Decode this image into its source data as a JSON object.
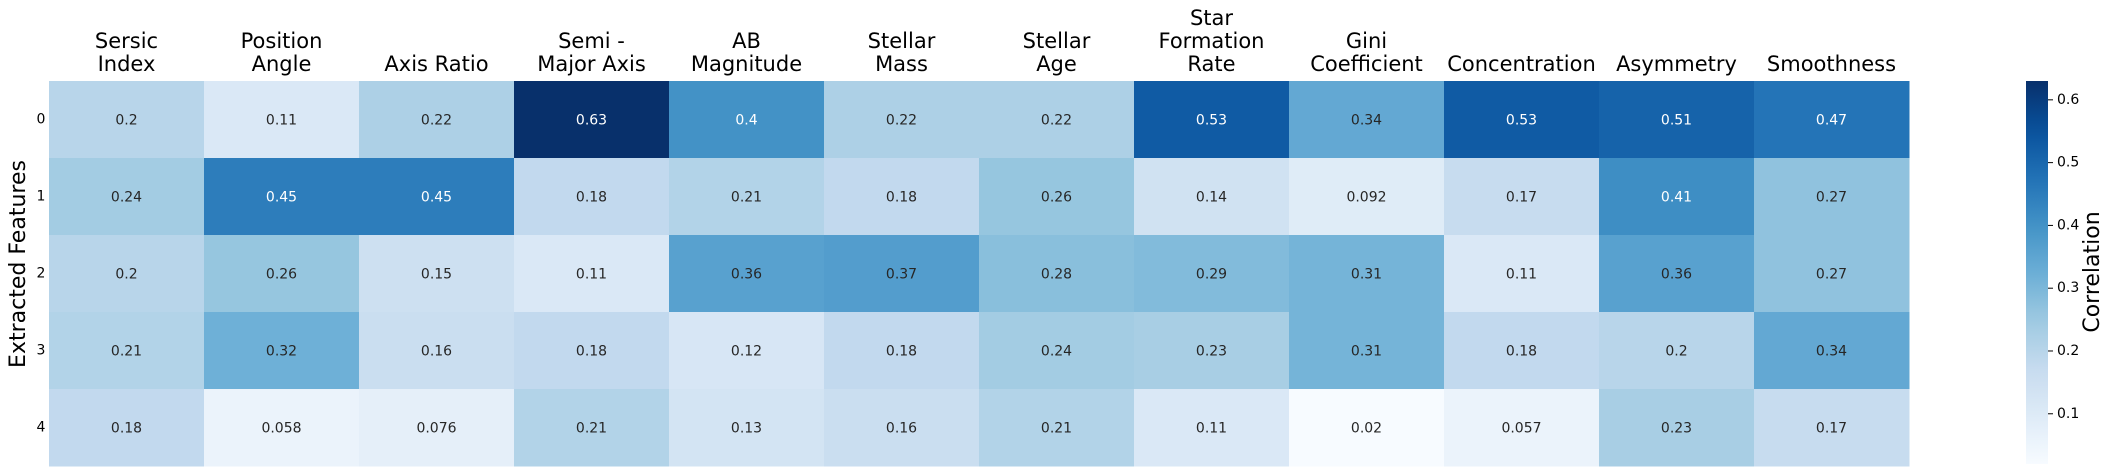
{
  "chart_data": {
    "type": "heatmap",
    "x_categories": [
      [
        "Sersic",
        "Index"
      ],
      [
        "Position",
        "Angle"
      ],
      [
        "Axis Ratio"
      ],
      [
        "Semi -",
        "Major Axis"
      ],
      [
        "AB",
        "Magnitude"
      ],
      [
        "Stellar",
        "Mass"
      ],
      [
        "Stellar",
        "Age"
      ],
      [
        "Star",
        "Formation",
        "Rate"
      ],
      [
        "Gini",
        "Coefficient"
      ],
      [
        "Concentration"
      ],
      [
        "Asymmetry"
      ],
      [
        "Smoothness"
      ]
    ],
    "y_categories": [
      "0",
      "1",
      "2",
      "3",
      "4"
    ],
    "values": [
      [
        0.2,
        0.11,
        0.22,
        0.63,
        0.4,
        0.22,
        0.22,
        0.53,
        0.34,
        0.53,
        0.51,
        0.47
      ],
      [
        0.24,
        0.45,
        0.45,
        0.18,
        0.21,
        0.18,
        0.26,
        0.14,
        0.092,
        0.17,
        0.41,
        0.27
      ],
      [
        0.2,
        0.26,
        0.15,
        0.11,
        0.36,
        0.37,
        0.28,
        0.29,
        0.31,
        0.11,
        0.36,
        0.27
      ],
      [
        0.21,
        0.32,
        0.16,
        0.18,
        0.12,
        0.18,
        0.24,
        0.23,
        0.31,
        0.18,
        0.2,
        0.34
      ],
      [
        0.18,
        0.058,
        0.076,
        0.21,
        0.13,
        0.16,
        0.21,
        0.11,
        0.02,
        0.057,
        0.23,
        0.17
      ]
    ],
    "ylabel": "Extracted Features",
    "colorbar": {
      "label": "Correlation",
      "ticks": [
        0.1,
        0.2,
        0.3,
        0.4,
        0.5,
        0.6
      ],
      "range": [
        0.02,
        0.63
      ],
      "colormap": "Blues"
    }
  }
}
